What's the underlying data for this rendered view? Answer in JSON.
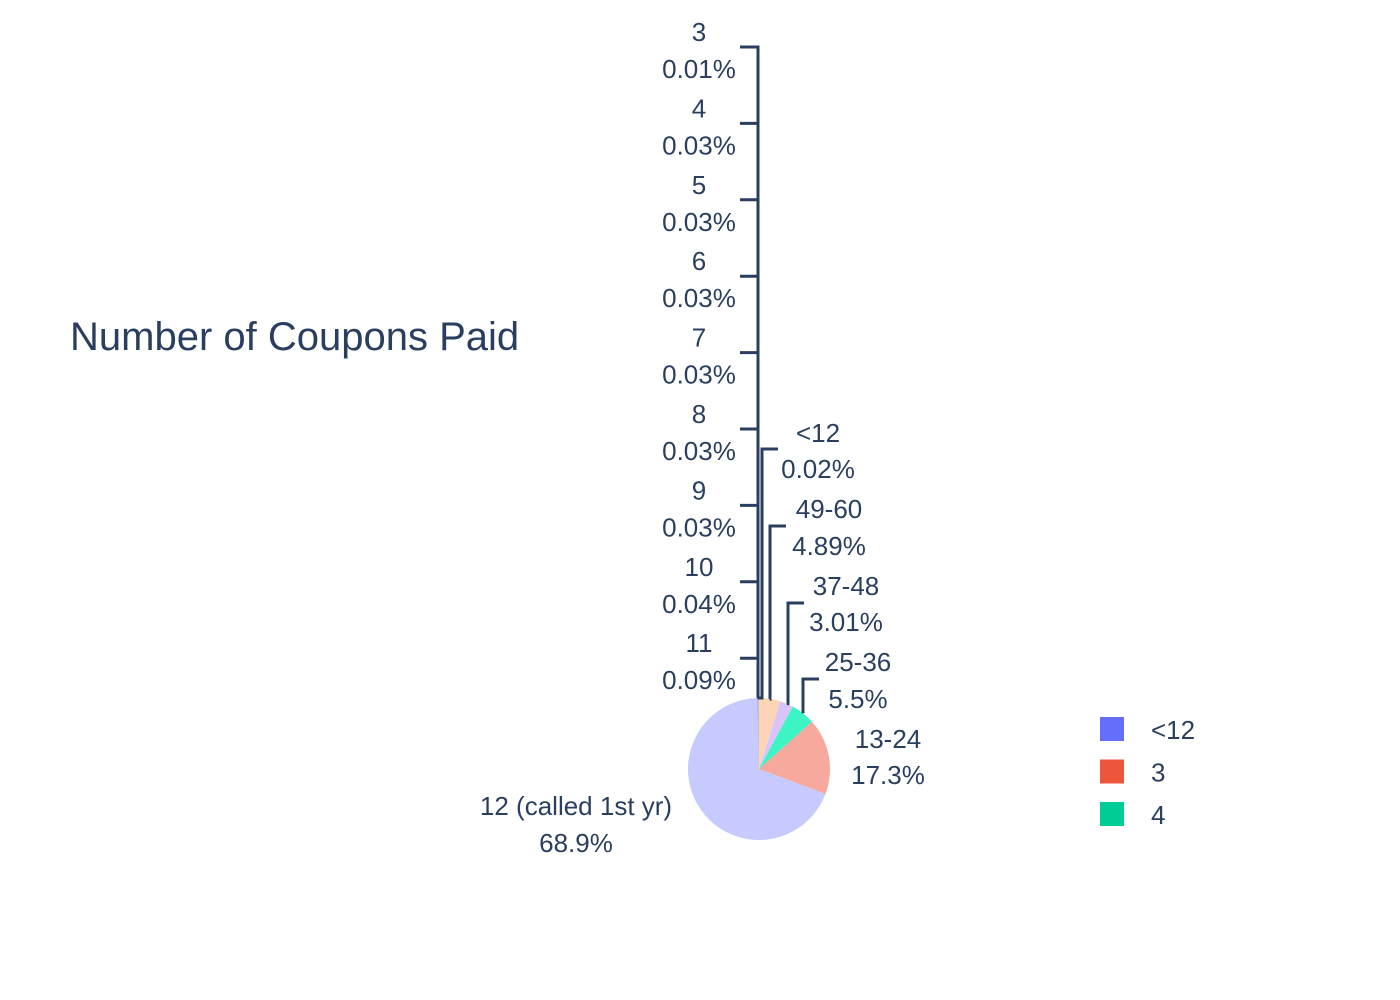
{
  "chart_data": {
    "type": "pie",
    "title": "Number of Coupons Paid",
    "slices": [
      {
        "label": "12 (called 1st yr)",
        "pct_text": "68.9%",
        "value": 68.9,
        "color": "#c6caff"
      },
      {
        "label": "13-24",
        "pct_text": "17.3%",
        "value": 17.3,
        "color": "#f6a99c"
      },
      {
        "label": "25-36",
        "pct_text": "5.5%",
        "value": 5.5,
        "color": "#3cf4c4"
      },
      {
        "label": "37-48",
        "pct_text": "3.01%",
        "value": 3.01,
        "color": "#d8c4f8"
      },
      {
        "label": "49-60",
        "pct_text": "4.89%",
        "value": 4.89,
        "color": "#fdd4b6"
      },
      {
        "label": "<12",
        "pct_text": "0.02%",
        "value": 0.02,
        "color": "#636efa"
      },
      {
        "label": "11",
        "pct_text": "0.09%",
        "value": 0.09,
        "color": "#ab63fa"
      },
      {
        "label": "10",
        "pct_text": "0.04%",
        "value": 0.04,
        "color": "#ffa15a"
      },
      {
        "label": "9",
        "pct_text": "0.03%",
        "value": 0.03,
        "color": "#19d3f3"
      },
      {
        "label": "8",
        "pct_text": "0.03%",
        "value": 0.03,
        "color": "#ff6692"
      },
      {
        "label": "7",
        "pct_text": "0.03%",
        "value": 0.03,
        "color": "#b6e880"
      },
      {
        "label": "6",
        "pct_text": "0.03%",
        "value": 0.03,
        "color": "#ff97ff"
      },
      {
        "label": "5",
        "pct_text": "0.03%",
        "value": 0.03,
        "color": "#fecb52"
      },
      {
        "label": "4",
        "pct_text": "0.03%",
        "value": 0.03,
        "color": "#00cc96"
      },
      {
        "label": "3",
        "pct_text": "0.01%",
        "value": 0.01,
        "color": "#ef553b"
      }
    ],
    "legend": {
      "placement": "right",
      "items": [
        {
          "label": "<12",
          "color": "#636efa"
        },
        {
          "label": "3",
          "color": "#ef553b"
        },
        {
          "label": "4",
          "color": "#00cc96"
        }
      ]
    }
  }
}
